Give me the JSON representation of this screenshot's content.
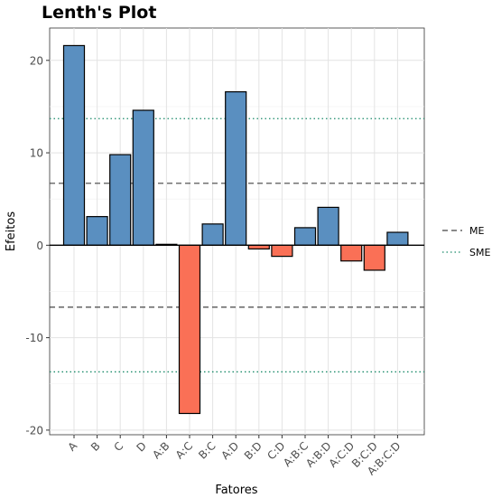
{
  "chart_data": {
    "type": "bar",
    "title": "Lenth's Plot",
    "xlabel": "Fatores",
    "ylabel": "Efeitos",
    "categories": [
      "A",
      "B",
      "C",
      "D",
      "A:B",
      "A:C",
      "B:C",
      "A:D",
      "B:D",
      "C:D",
      "A:B:C",
      "A:B:D",
      "A:C:D",
      "B:C:D",
      "A:B:C:D"
    ],
    "values": [
      21.6,
      3.1,
      9.8,
      14.6,
      0.1,
      -18.2,
      2.3,
      16.6,
      -0.4,
      -1.2,
      1.9,
      4.1,
      -1.7,
      -2.7,
      1.4
    ],
    "ylim": [
      -20.5,
      23.5
    ],
    "yticks": [
      -20,
      -10,
      0,
      10,
      20
    ],
    "grid": true,
    "colors": {
      "positive": "#5a8fc0",
      "negative": "#fa7056",
      "bar_outline": "#000000",
      "me_line": "#444444",
      "sme_line": "#1a8a6a"
    },
    "reference_lines": [
      {
        "name": "ME",
        "value": 6.7,
        "style": "dashed"
      },
      {
        "name": "ME",
        "value": -6.7,
        "style": "dashed"
      },
      {
        "name": "SME",
        "value": 13.7,
        "style": "dotted"
      },
      {
        "name": "SME",
        "value": -13.7,
        "style": "dotted"
      }
    ],
    "legend": {
      "position": "right",
      "entries": [
        {
          "label": "ME",
          "style": "dashed"
        },
        {
          "label": "SME",
          "style": "dotted"
        }
      ]
    }
  }
}
